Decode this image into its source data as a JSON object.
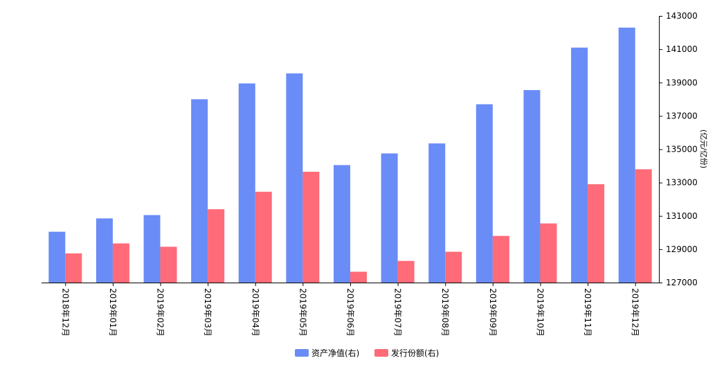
{
  "chart_data": {
    "type": "bar",
    "categories": [
      "2018年12月",
      "2019年01月",
      "2019年02月",
      "2019年03月",
      "2019年04月",
      "2019年05月",
      "2019年06月",
      "2019年07月",
      "2019年08月",
      "2019年09月",
      "2019年10月",
      "2019年11月",
      "2019年12月"
    ],
    "series": [
      {
        "name": "资产净值(右)",
        "color": "#6a8cf7",
        "values": [
          130050,
          130850,
          131050,
          138000,
          138950,
          139550,
          134050,
          134750,
          135350,
          137700,
          138550,
          141100,
          142300
        ]
      },
      {
        "name": "发行份额(右)",
        "color": "#ff6b78",
        "values": [
          128750,
          129350,
          129150,
          131400,
          132450,
          133650,
          127650,
          128300,
          128850,
          129800,
          130550,
          132900,
          133800
        ]
      }
    ],
    "y_axis": {
      "position": "right",
      "label": "(亿元/亿份)",
      "ylim": [
        127000,
        143000
      ],
      "ticks": [
        "127000",
        "129000",
        "131000",
        "133000",
        "135000",
        "137000",
        "139000",
        "141000",
        "143000"
      ]
    },
    "legend": {
      "placement": "bottom-center"
    },
    "grid": false
  }
}
